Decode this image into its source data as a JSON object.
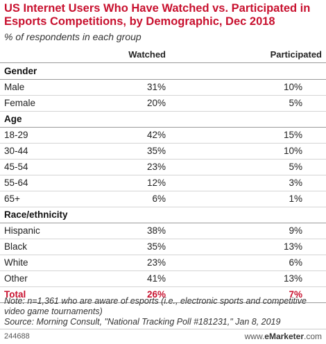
{
  "chart_data": {
    "type": "table",
    "title": "US Internet Users Who Have Watched vs. Participated in Esports Competitions, by Demographic, Dec 2018",
    "subtitle": "% of respondents in each group",
    "columns": [
      "Watched",
      "Participated"
    ],
    "rows": [
      {
        "label": "Gender",
        "section": true
      },
      {
        "label": "Male",
        "watched": "31%",
        "participated": "10%"
      },
      {
        "label": "Female",
        "watched": "20%",
        "participated": "5%"
      },
      {
        "label": "Age",
        "section": true
      },
      {
        "label": "18-29",
        "watched": "42%",
        "participated": "15%"
      },
      {
        "label": "30-44",
        "watched": "35%",
        "participated": "10%"
      },
      {
        "label": "45-54",
        "watched": "23%",
        "participated": "5%"
      },
      {
        "label": "55-64",
        "watched": "12%",
        "participated": "3%"
      },
      {
        "label": "65+",
        "watched": "6%",
        "participated": "1%"
      },
      {
        "label": "Race/ethnicity",
        "section": true
      },
      {
        "label": "Hispanic",
        "watched": "38%",
        "participated": "9%"
      },
      {
        "label": "Black",
        "watched": "35%",
        "participated": "13%"
      },
      {
        "label": "White",
        "watched": "23%",
        "participated": "6%"
      },
      {
        "label": "Other",
        "watched": "41%",
        "participated": "13%"
      },
      {
        "label": "Total",
        "watched": "26%",
        "participated": "7%",
        "total": true
      }
    ],
    "note": "Note: n=1,361 who are aware of esports (i.e., electronic sports and competitive video game tournaments)",
    "source": "Source: Morning Consult, \"National Tracking Poll #181231,\" Jan 8, 2019"
  },
  "footer": {
    "chart_id": "244688",
    "site_prefix": "www.",
    "site_brand": "eMarketer",
    "site_suffix": ".com"
  },
  "colors": {
    "accent": "#c8102e"
  }
}
